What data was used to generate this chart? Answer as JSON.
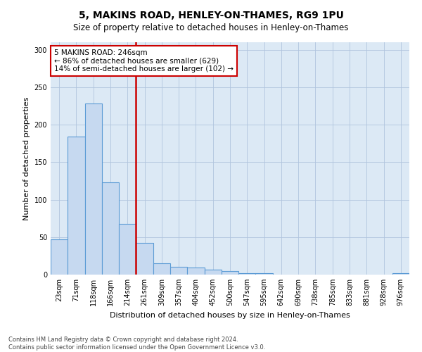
{
  "title": "5, MAKINS ROAD, HENLEY-ON-THAMES, RG9 1PU",
  "subtitle": "Size of property relative to detached houses in Henley-on-Thames",
  "xlabel": "Distribution of detached houses by size in Henley-on-Thames",
  "ylabel": "Number of detached properties",
  "bar_labels": [
    "23sqm",
    "71sqm",
    "118sqm",
    "166sqm",
    "214sqm",
    "261sqm",
    "309sqm",
    "357sqm",
    "404sqm",
    "452sqm",
    "500sqm",
    "547sqm",
    "595sqm",
    "642sqm",
    "690sqm",
    "738sqm",
    "785sqm",
    "833sqm",
    "881sqm",
    "928sqm",
    "976sqm"
  ],
  "bar_values": [
    47,
    184,
    228,
    123,
    68,
    42,
    15,
    10,
    9,
    7,
    5,
    2,
    2,
    0,
    0,
    0,
    0,
    0,
    0,
    0,
    2
  ],
  "bar_color": "#c6d9f0",
  "bar_edgecolor": "#5b9bd5",
  "red_line_x": 4.5,
  "annotation_line1": "5 MAKINS ROAD: 246sqm",
  "annotation_line2": "← 86% of detached houses are smaller (629)",
  "annotation_line3": "14% of semi-detached houses are larger (102) →",
  "annotation_box_color": "#ffffff",
  "annotation_box_edgecolor": "#cc0000",
  "red_line_color": "#cc0000",
  "background_color": "#ffffff",
  "plot_bg_color": "#dce9f5",
  "grid_color": "#b0c4de",
  "ylim": [
    0,
    310
  ],
  "yticks": [
    0,
    50,
    100,
    150,
    200,
    250,
    300
  ],
  "footer_line1": "Contains HM Land Registry data © Crown copyright and database right 2024.",
  "footer_line2": "Contains public sector information licensed under the Open Government Licence v3.0."
}
